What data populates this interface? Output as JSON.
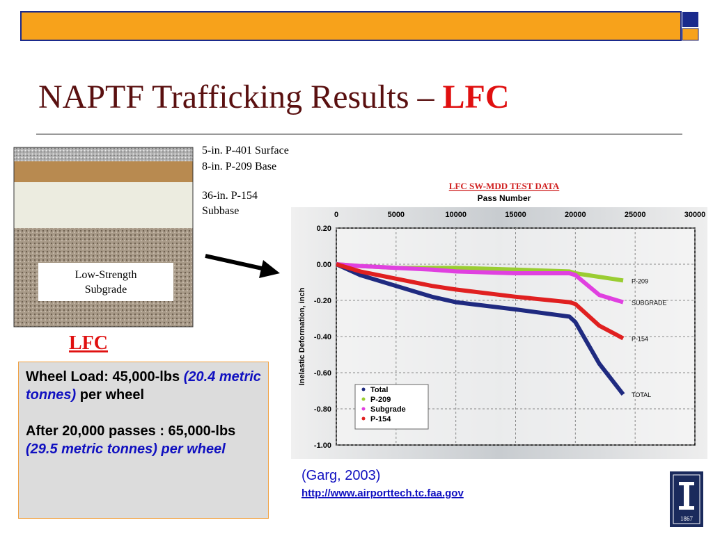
{
  "header": {
    "title": "NAPTF Trafficking Results – ",
    "title_highlight": "LFC"
  },
  "layers": {
    "surface": "5-in. P-401 Surface",
    "base": "8-in. P-209 Base",
    "subbase_1": "36-in. P-154",
    "subbase_2": "Subbase",
    "subgrade_1": "Low-Strength",
    "subgrade_2": "Subgrade",
    "caption": "LFC"
  },
  "info": {
    "p1": [
      "Wheel Load: 45,000-lbs ",
      "(20.4 metric tonnes)",
      " per wheel"
    ],
    "p2": [
      "After 20,000 passes  : 65,000-lbs ",
      "(29.5  metric tonnes) per wheel"
    ]
  },
  "citation": {
    "author": "(Garg, 2003)",
    "url": "http://www.airporttech.tc.faa.gov"
  },
  "logo": {
    "year": "1867"
  },
  "chart_data": {
    "type": "line",
    "title": "LFC SW-MDD TEST DATA",
    "x_label": "Pass Number",
    "y_label": "Inelastic Deformation, inch",
    "x": [
      0,
      2000,
      5000,
      8000,
      10000,
      15000,
      19500,
      20000,
      22000,
      24000
    ],
    "xlim": [
      0,
      30000
    ],
    "xticks": [
      0,
      5000,
      10000,
      15000,
      20000,
      25000,
      30000
    ],
    "ylim": [
      -1.0,
      0.2
    ],
    "yticks": [
      {
        "value": 0.2,
        "label": "0.20"
      },
      {
        "value": 0.0,
        "label": "0.00"
      },
      {
        "value": -0.2,
        "label": "-0.20"
      },
      {
        "value": -0.4,
        "label": "-0.40"
      },
      {
        "value": -0.6,
        "label": "-0.60"
      },
      {
        "value": -0.8,
        "label": "-0.80"
      },
      {
        "value": -1.0,
        "label": "-1.00"
      }
    ],
    "grid": true,
    "series": [
      {
        "name": "Total",
        "color": "#1f2a80",
        "end_label": "TOTAL",
        "values": [
          0,
          -0.06,
          -0.12,
          -0.18,
          -0.21,
          -0.25,
          -0.29,
          -0.32,
          -0.55,
          -0.72
        ]
      },
      {
        "name": "P-209",
        "color": "#9acd32",
        "end_label": "P-209",
        "values": [
          0,
          -0.01,
          -0.02,
          -0.02,
          -0.02,
          -0.03,
          -0.04,
          -0.05,
          -0.07,
          -0.09
        ]
      },
      {
        "name": "Subgrade",
        "color": "#e040e0",
        "end_label": "SUBGRADE",
        "values": [
          0,
          -0.01,
          -0.02,
          -0.03,
          -0.04,
          -0.05,
          -0.05,
          -0.06,
          -0.17,
          -0.21
        ]
      },
      {
        "name": "P-154",
        "color": "#e02020",
        "end_label": "P-154",
        "values": [
          0,
          -0.04,
          -0.08,
          -0.12,
          -0.14,
          -0.18,
          -0.21,
          -0.22,
          -0.34,
          -0.41
        ]
      }
    ]
  }
}
